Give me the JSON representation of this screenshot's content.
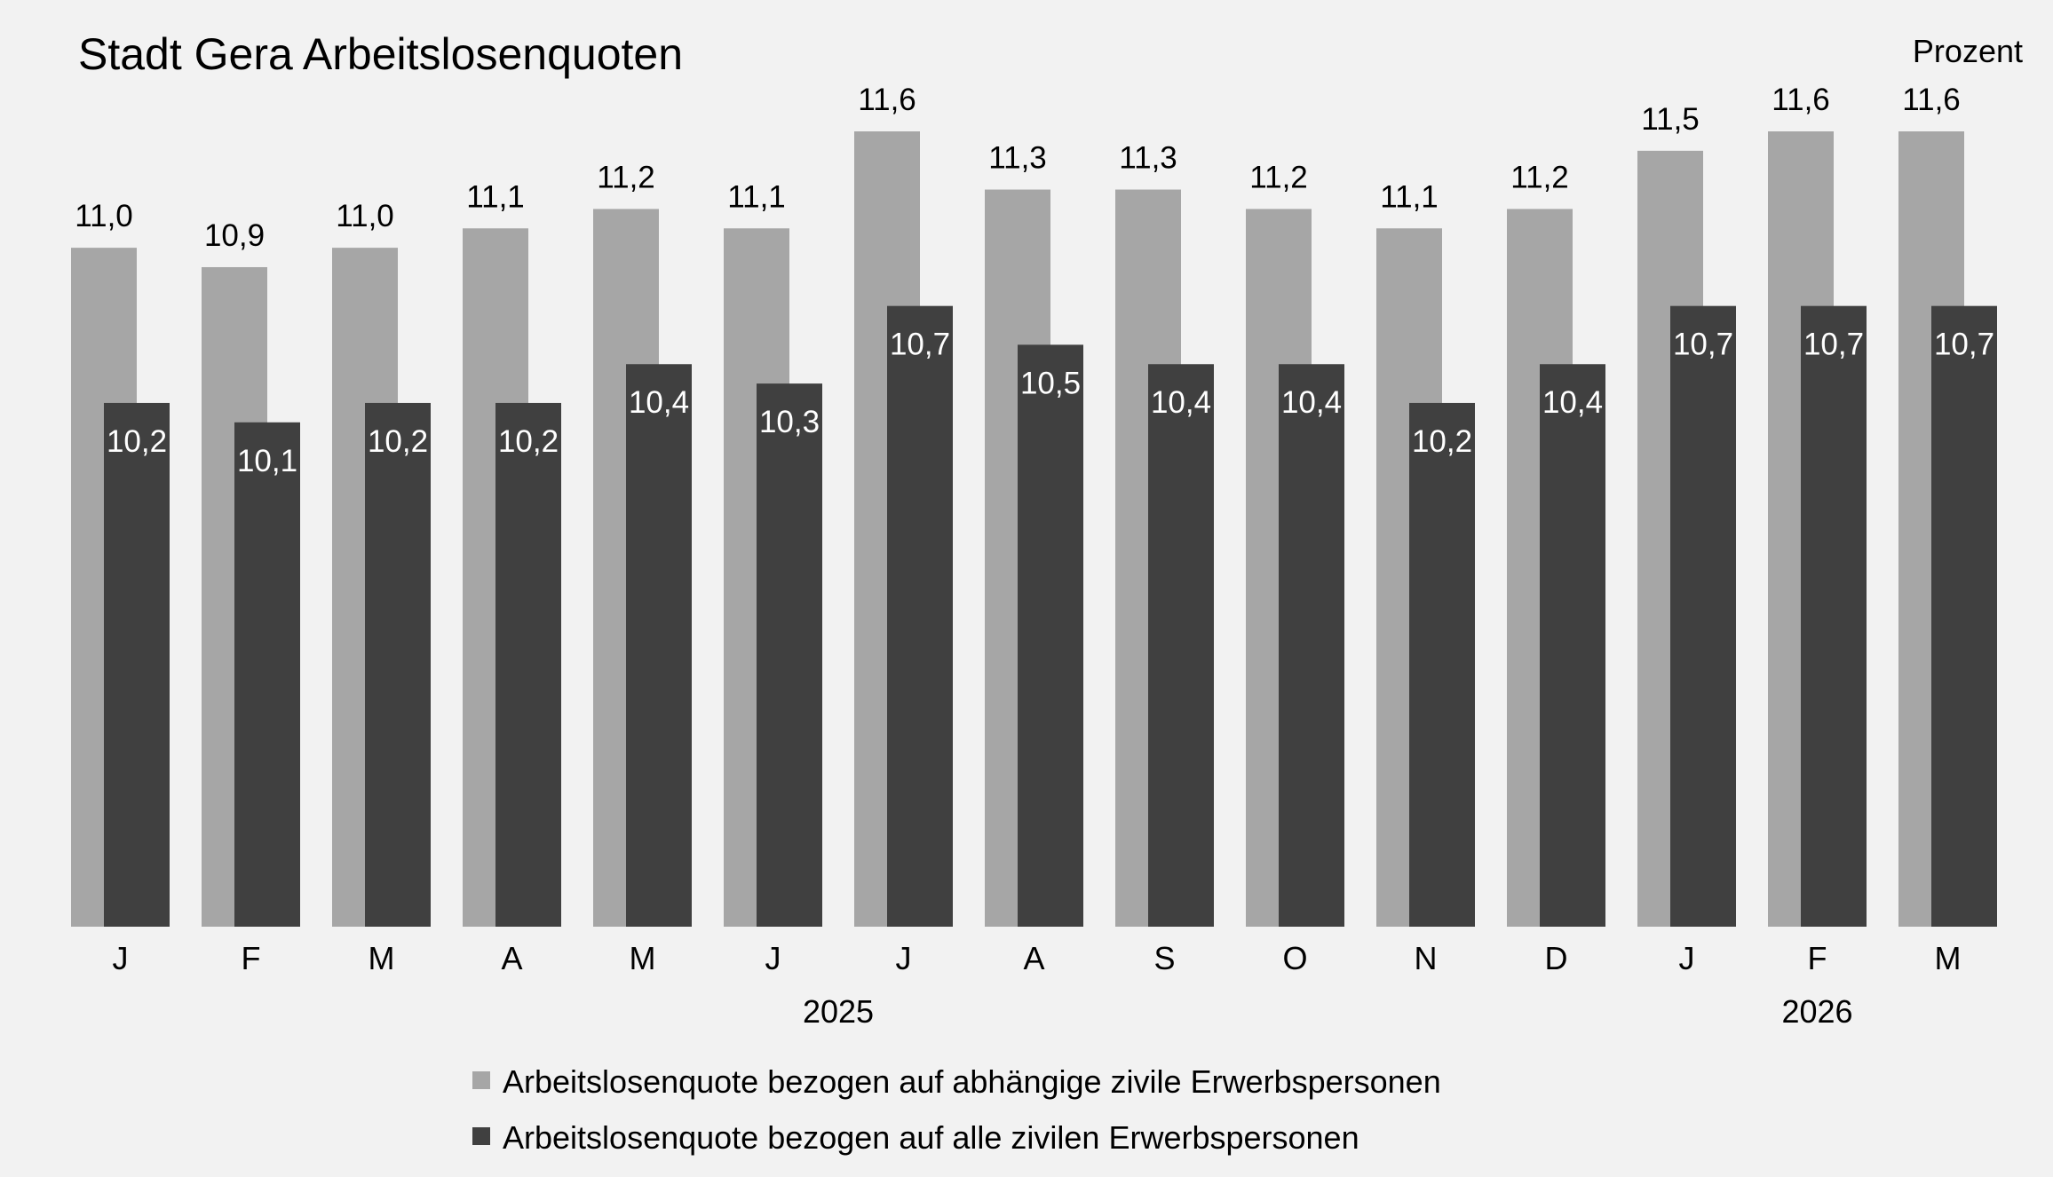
{
  "chart_data": {
    "type": "bar",
    "title": "Stadt Gera Arbeitslosenquoten",
    "unit_label": "Prozent",
    "categories": [
      "J",
      "F",
      "M",
      "A",
      "M",
      "J",
      "J",
      "A",
      "S",
      "O",
      "N",
      "D",
      "J",
      "F",
      "M"
    ],
    "year_labels": [
      {
        "label": "2025",
        "category_index": 5.5
      },
      {
        "label": "2026",
        "category_index": 13
      }
    ],
    "series": [
      {
        "name": "Arbeitslosenquote bezogen auf abhängige zivile Erwerbspersonen",
        "color": "#a6a6a6",
        "values": [
          11.0,
          10.9,
          11.0,
          11.1,
          11.2,
          11.1,
          11.6,
          11.3,
          11.3,
          11.2,
          11.1,
          11.2,
          11.5,
          11.6,
          11.6
        ],
        "labels": [
          "11,0",
          "10,9",
          "11,0",
          "11,1",
          "11,2",
          "11,1",
          "11,6",
          "11,3",
          "11,3",
          "11,2",
          "11,1",
          "11,2",
          "11,5",
          "11,6",
          "11,6"
        ],
        "label_color": "#000000"
      },
      {
        "name": "Arbeitslosenquote bezogen auf alle zivilen Erwerbspersonen",
        "color": "#404040",
        "values": [
          10.2,
          10.1,
          10.2,
          10.2,
          10.4,
          10.3,
          10.7,
          10.5,
          10.4,
          10.4,
          10.2,
          10.4,
          10.7,
          10.7,
          10.7
        ],
        "labels": [
          "10,2",
          "10,1",
          "10,2",
          "10,2",
          "10,4",
          "10,3",
          "10,7",
          "10,5",
          "10,4",
          "10,4",
          "10,2",
          "10,4",
          "10,7",
          "10,7",
          "10,7"
        ],
        "label_color": "#ffffff"
      }
    ],
    "ylim": [
      7.5,
      11.6
    ],
    "grid": false,
    "legend_position": "bottom"
  }
}
